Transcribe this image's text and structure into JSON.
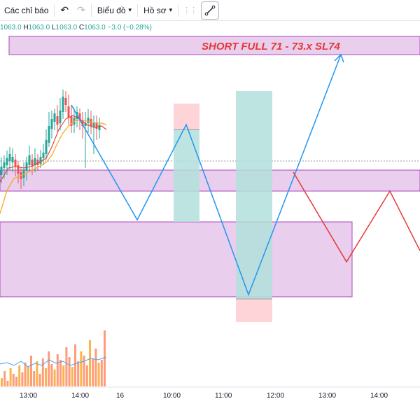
{
  "toolbar": {
    "indicators_label": "Các chỉ báo",
    "chart_label": "Biểu đồ",
    "profile_label": "Hồ sơ"
  },
  "ohlc": {
    "open": "1063.0",
    "high_prefix": "H",
    "high": "1063.0",
    "low_prefix": "L",
    "low": "1063.0",
    "close_prefix": "C",
    "close": "1063.0",
    "change": "−3.0 (−0.28%)"
  },
  "annotation": {
    "text": "SHORT FULL 71 - 73.x SL74",
    "color": "#e53935"
  },
  "colors": {
    "zone_fill": "#e1bee7",
    "zone_border": "#ab47bc",
    "path_blue": "#2196f3",
    "path_red": "#e53935",
    "target_teal": "#b2dfdb",
    "stop_pink": "#ffcdd2",
    "candle_up": "#26a69a",
    "candle_down": "#ef5350"
  },
  "time_axis": {
    "ticks": [
      "13:00",
      "14:00",
      "16",
      "10:00",
      "11:00",
      "12:00",
      "13:00",
      "14:00"
    ]
  }
}
